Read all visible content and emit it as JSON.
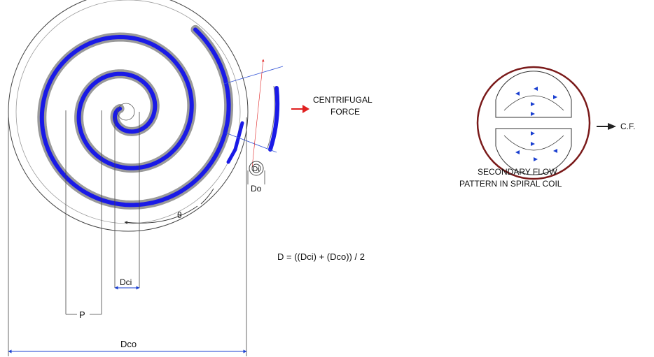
{
  "labels": {
    "centrifugal_line1": "CENTRIFUGAL",
    "centrifugal_line2": "FORCE",
    "secondary_line1": "SECONDARY FLOW",
    "secondary_line2": "PATTERN IN SPIRAL COIL",
    "cf": "C.F.",
    "formula": "D = ((Dci) + (Dco)) / 2",
    "dci": "Dci",
    "p": "P",
    "dco": "Dco",
    "di": "Di",
    "do": "Do",
    "theta": "θ"
  },
  "colors": {
    "spiral": "#1a1ae6",
    "spiral_shadow": "#9a9a9a",
    "force_arrow": "#e02020",
    "ring": "#7a1a1a",
    "flow_arrow": "#1a3fd0",
    "line": "#333333"
  }
}
